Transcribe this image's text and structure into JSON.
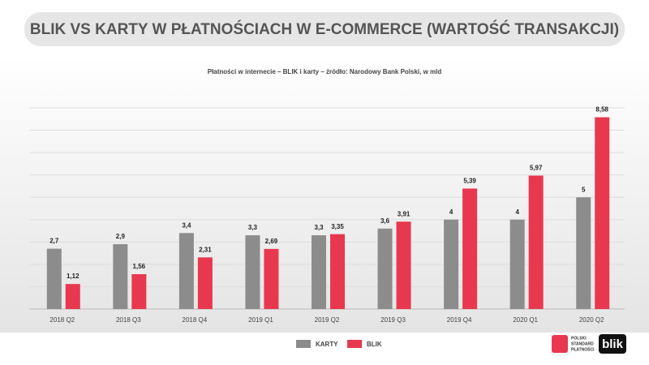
{
  "chart_data": {
    "type": "bar",
    "title": "BLIK VS KARTY W PŁATNOŚCIACH  W E-COMMERCE (WARTOŚĆ TRANSAKCJI)",
    "subtitle": "Płatności w internecie – BLIK i karty – źródło: Narodowy Bank Polski, w mld",
    "categories": [
      "2018 Q2",
      "2018 Q3",
      "2018 Q4",
      "2019 Q1",
      "2019 Q2",
      "2019 Q3",
      "2019 Q4",
      "2020 Q1",
      "2020 Q2"
    ],
    "series": [
      {
        "name": "KARTY",
        "color": "#8c8c8c",
        "values": [
          2.7,
          2.9,
          3.4,
          3.3,
          3.3,
          3.6,
          4,
          4,
          5
        ],
        "value_labels": [
          "2,7",
          "2,9",
          "3,4",
          "3,3",
          "3,3",
          "3,6",
          "4",
          "4",
          "5"
        ]
      },
      {
        "name": "BLIK",
        "color": "#e8384f",
        "values": [
          1.12,
          1.56,
          2.31,
          2.69,
          3.35,
          3.91,
          5.39,
          5.97,
          8.58
        ],
        "value_labels": [
          "1,12",
          "1,56",
          "2,31",
          "2,69",
          "3,35",
          "3,91",
          "5,39",
          "5,97",
          "8,58"
        ]
      }
    ],
    "ylim": [
      0,
      9
    ],
    "yticks": [
      0,
      1,
      2,
      3,
      4,
      5,
      6,
      7,
      8,
      9
    ],
    "grid": true,
    "logos": [
      "POLSKI",
      "STANDARD",
      "PŁATNOŚCI",
      "blik"
    ]
  }
}
